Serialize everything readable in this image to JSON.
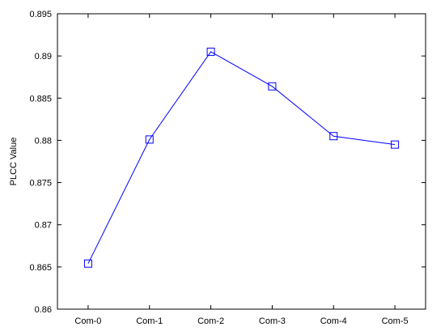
{
  "chart_data": {
    "type": "line",
    "categories": [
      "Com-0",
      "Com-1",
      "Com-2",
      "Com-3",
      "Com-4",
      "Com-5"
    ],
    "series": [
      {
        "values": [
          0.8654,
          0.8801,
          0.8905,
          0.8864,
          0.8805,
          0.8795
        ],
        "color": "#0000ff",
        "marker": "square"
      }
    ],
    "title": "",
    "xlabel": "",
    "ylabel": "PLCC Value",
    "ylim": [
      0.86,
      0.895
    ],
    "yticks": [
      0.86,
      0.865,
      0.87,
      0.875,
      0.88,
      0.885,
      0.89,
      0.895
    ],
    "ytick_labels": [
      "0.86",
      "0.865",
      "0.87",
      "0.875",
      "0.88",
      "0.885",
      "0.89",
      "0.895"
    ],
    "grid": false,
    "legend": "none"
  }
}
